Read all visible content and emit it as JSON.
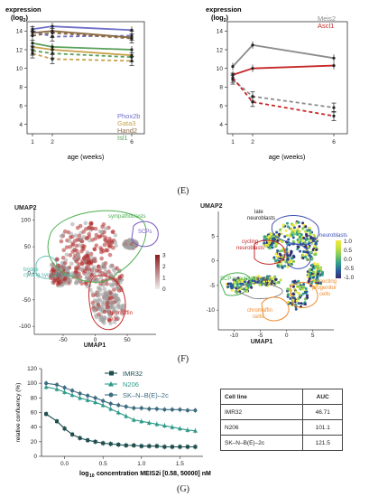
{
  "panel_labels": {
    "e": "(E)",
    "f": "(F)",
    "g": "(G)"
  },
  "colors": {
    "phox2b": "#6f6fc9",
    "gata3": "#c9a24a",
    "hand2": "#8b6b47",
    "isl1": "#5aa05a",
    "meis2": "#8c8c8c",
    "ascl1": "#c62828",
    "imr32": "#1d4d4d",
    "n206": "#2e9a8a",
    "sk": "#3d6c80",
    "dots_red": "#b03030",
    "dots_gray": "#a0a0a0"
  },
  "chart_data": [
    {
      "type": "line",
      "xlabel": "age (weeks)",
      "ylabel": "expression (log2)",
      "x": [
        1,
        2,
        6
      ],
      "xticks": [
        "1",
        "2",
        "6"
      ],
      "ylim": [
        3,
        15
      ],
      "yticks": [
        4,
        6,
        8,
        10,
        12,
        14
      ],
      "series": [
        {
          "name": "Phox2b",
          "color": "#6f6fc9",
          "values": [
            14.2,
            14.5,
            14.1
          ]
        },
        {
          "name": "Gata3",
          "color": "#c9a24a",
          "values": [
            12.3,
            12.0,
            11.4
          ]
        },
        {
          "name": "Hand2",
          "color": "#8b6b47",
          "values": [
            13.8,
            14.0,
            13.3
          ]
        },
        {
          "name": "Isl1",
          "color": "#5aa05a",
          "values": [
            12.7,
            12.3,
            12.0
          ]
        }
      ],
      "dashed_series": [
        {
          "color": "#6f6fc9",
          "values": [
            14.0,
            13.4,
            13.5
          ]
        },
        {
          "color": "#c9a24a",
          "values": [
            11.6,
            11.0,
            10.8
          ]
        },
        {
          "color": "#8b6b47",
          "values": [
            13.5,
            13.8,
            13.2
          ]
        },
        {
          "color": "#5aa05a",
          "values": [
            11.9,
            11.6,
            11.2
          ]
        }
      ]
    },
    {
      "type": "line",
      "xlabel": "age (weeks)",
      "ylabel": "expression (log2)",
      "x": [
        1,
        2,
        6
      ],
      "xticks": [
        "1",
        "2",
        "6"
      ],
      "ylim": [
        3,
        15
      ],
      "yticks": [
        4,
        6,
        8,
        10,
        12,
        14
      ],
      "series": [
        {
          "name": "Meis2",
          "color": "#8c8c8c",
          "values": [
            10.2,
            12.5,
            11.1
          ]
        },
        {
          "name": "Ascl1",
          "color": "#c62828",
          "values": [
            9.3,
            10.0,
            10.3
          ]
        }
      ],
      "dashed_series": [
        {
          "color": "#8c8c8c",
          "values": [
            8.8,
            7.0,
            5.8
          ]
        },
        {
          "color": "#c62828",
          "values": [
            9.0,
            6.4,
            4.9
          ]
        }
      ]
    },
    {
      "type": "scatter",
      "xlabel": "UMAP1",
      "ylabel": "UMAP2",
      "xticks": [
        -50,
        0,
        50
      ],
      "yticks": [
        -100,
        -50,
        0,
        50,
        100
      ],
      "xlim": [
        -95,
        95
      ],
      "ylim": [
        -115,
        120
      ],
      "colorbar": {
        "ticks": [
          0,
          1,
          2,
          3
        ]
      },
      "annotations": [
        "sympathoblasts",
        "SCPs",
        "chromaffin cells",
        "bridge",
        "cycling sympathoblasts"
      ]
    },
    {
      "type": "scatter",
      "xlabel": "UMAP1",
      "ylabel": "UMAP2",
      "xticks": [
        -10,
        -5,
        0,
        5
      ],
      "yticks": [
        -10,
        -5,
        0,
        5
      ],
      "xlim": [
        -13,
        9
      ],
      "ylim": [
        -14,
        10
      ],
      "colorbar": {
        "ticks": [
          "1.0",
          "0.5",
          "0.0",
          "-0.5",
          "-1.0"
        ]
      },
      "annotations": [
        "late neuroblasts",
        "neuroblasts",
        "cycling neuroblasts",
        "SCP population",
        "bridge",
        "chromaffin cells",
        "connecting progenitor cells"
      ]
    },
    {
      "type": "line",
      "xlabel": "log10 concentration MEIS2i [0.58, 50000] nM",
      "ylabel": "relative confluency (%)",
      "xticks": [
        0.0,
        0.5,
        1.0,
        1.5
      ],
      "xtick_labels": [
        "0.0",
        "0.5",
        "1.0",
        "1.5"
      ],
      "yticks": [
        0,
        20,
        40,
        60,
        80,
        100,
        120
      ],
      "ylim": [
        0,
        120
      ],
      "xlim": [
        -0.3,
        1.8
      ],
      "x": [
        -0.24,
        -0.1,
        0.0,
        0.1,
        0.2,
        0.3,
        0.4,
        0.5,
        0.6,
        0.7,
        0.8,
        0.9,
        1.0,
        1.1,
        1.2,
        1.3,
        1.4,
        1.5,
        1.6,
        1.7
      ],
      "series": [
        {
          "name": "IMR32",
          "color": "#1d4d4d",
          "values": [
            58,
            48,
            38,
            30,
            25,
            22,
            20,
            18,
            17,
            16,
            15,
            15,
            14,
            14,
            14,
            13,
            13,
            13,
            13,
            13
          ]
        },
        {
          "name": "N206",
          "color": "#2e9a8a",
          "values": [
            95,
            92,
            88,
            84,
            80,
            77,
            74,
            70,
            65,
            60,
            55,
            50,
            48,
            46,
            44,
            42,
            40,
            38,
            36,
            35
          ]
        },
        {
          "name": "SK–N–B(E)–2c",
          "color": "#3d6c80",
          "values": [
            100,
            98,
            94,
            90,
            86,
            83,
            80,
            76,
            72,
            70,
            68,
            66,
            66,
            65,
            65,
            64,
            64,
            64,
            63,
            63
          ]
        }
      ],
      "table": {
        "headers": [
          "Cell line",
          "AUC"
        ],
        "rows": [
          [
            "IMR32",
            "46.71"
          ],
          [
            "N206",
            "101.1"
          ],
          [
            "SK–N–B(E)–2c",
            "121.5"
          ]
        ]
      }
    }
  ]
}
